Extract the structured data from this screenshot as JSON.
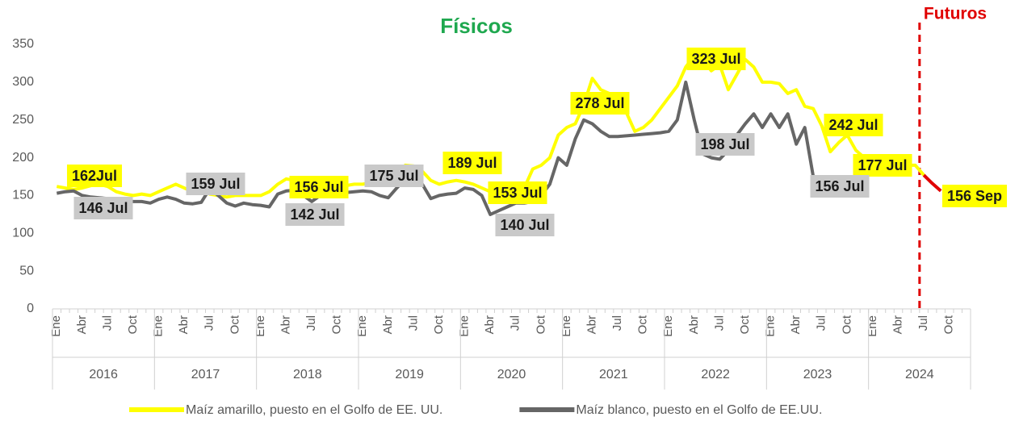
{
  "chart_data": {
    "type": "line",
    "title": "Físicos",
    "futures_label": "Futuros",
    "futures_color": "#e00000",
    "categories": [
      "Ene",
      null,
      null,
      "Abr",
      null,
      null,
      "Jul",
      null,
      null,
      "Oct",
      null,
      null,
      "Ene",
      null,
      null,
      "Abr",
      null,
      null,
      "Jul",
      null,
      null,
      "Oct",
      null,
      null,
      "Ene",
      null,
      null,
      "Abr",
      null,
      null,
      "Jul",
      null,
      null,
      "Oct",
      null,
      null,
      "Ene",
      null,
      null,
      "Abr",
      null,
      null,
      "Jul",
      null,
      null,
      "Oct",
      null,
      null,
      "Ene",
      null,
      null,
      "Abr",
      null,
      null,
      "Jul",
      null,
      null,
      "Oct",
      null,
      null,
      "Ene",
      null,
      null,
      "Abr",
      null,
      null,
      "Jul",
      null,
      null,
      "Oct",
      null,
      null,
      "Ene",
      null,
      null,
      "Abr",
      null,
      null,
      "Jul",
      null,
      null,
      "Oct",
      null,
      null,
      "Ene",
      null,
      null,
      "Abr",
      null,
      null,
      "Jul",
      null,
      null,
      "Oct",
      null,
      null,
      "Ene",
      null,
      null,
      "Abr",
      null,
      null,
      "Jul",
      null,
      null,
      "Oct",
      null,
      null
    ],
    "year_groups": [
      "2016",
      "2017",
      "2018",
      "2019",
      "2020",
      "2021",
      "2022",
      "2023",
      "2024"
    ],
    "ylim": [
      0,
      350
    ],
    "yticks": [
      0,
      50,
      100,
      150,
      200,
      250,
      300,
      350
    ],
    "series": [
      {
        "name": "Maíz amarillo, puesto en el Golfo de EE. UU.",
        "color": "#ffff00",
        "label_bg": "#ffff00",
        "values": [
          162,
          160,
          158,
          160,
          163,
          165,
          162,
          155,
          152,
          150,
          152,
          150,
          155,
          160,
          165,
          160,
          155,
          156,
          152,
          150,
          148,
          150,
          150,
          150,
          150,
          155,
          165,
          172,
          170,
          160,
          156,
          158,
          160,
          162,
          163,
          165,
          165,
          167,
          168,
          170,
          175,
          190,
          189,
          182,
          170,
          165,
          168,
          170,
          168,
          165,
          160,
          155,
          150,
          150,
          153,
          160,
          185,
          190,
          200,
          230,
          240,
          245,
          270,
          305,
          290,
          285,
          278,
          260,
          235,
          240,
          250,
          265,
          280,
          295,
          320,
          335,
          330,
          315,
          323,
          290,
          310,
          330,
          320,
          300,
          300,
          298,
          285,
          290,
          268,
          265,
          242,
          208,
          220,
          230,
          210,
          200,
          195,
          197,
          195,
          193,
          190,
          190,
          177,
          null,
          null,
          null,
          null,
          null
        ],
        "value_labels": [
          null,
          null,
          null,
          null,
          null,
          null,
          "162Jul",
          null,
          null,
          null,
          null,
          null,
          null,
          null,
          null,
          null,
          null,
          null,
          null,
          null,
          null,
          null,
          null,
          null,
          null,
          null,
          null,
          null,
          null,
          null,
          "156 Jul",
          null,
          null,
          null,
          null,
          null,
          null,
          null,
          null,
          null,
          null,
          null,
          "189 Jul",
          null,
          null,
          null,
          null,
          null,
          null,
          null,
          null,
          null,
          null,
          null,
          "153 Jul",
          null,
          null,
          null,
          null,
          null,
          null,
          null,
          null,
          null,
          null,
          null,
          "278 Jul",
          null,
          null,
          null,
          null,
          null,
          null,
          null,
          null,
          null,
          null,
          null,
          "323 Jul",
          null,
          null,
          null,
          null,
          null,
          null,
          null,
          null,
          null,
          null,
          null,
          "242 Jul",
          null,
          null,
          null,
          null,
          null,
          null,
          null,
          null,
          null,
          null,
          null,
          "177 Jul",
          null,
          null,
          null,
          null,
          null
        ]
      },
      {
        "name": "Maíz blanco, puesto en el Golfo de EE.UU.",
        "color": "#666666",
        "label_bg": "#c9c9c9",
        "values": [
          153,
          155,
          156,
          150,
          148,
          147,
          146,
          145,
          143,
          142,
          142,
          140,
          145,
          148,
          145,
          140,
          139,
          141,
          159,
          150,
          140,
          136,
          140,
          138,
          137,
          135,
          152,
          156,
          157,
          150,
          142,
          150,
          152,
          155,
          154,
          155,
          156,
          155,
          150,
          147,
          160,
          172,
          175,
          165,
          146,
          150,
          152,
          153,
          160,
          158,
          150,
          125,
          130,
          135,
          140,
          140,
          142,
          150,
          165,
          200,
          190,
          225,
          250,
          245,
          235,
          228,
          228,
          229,
          230,
          231,
          232,
          233,
          235,
          250,
          300,
          250,
          205,
          200,
          198,
          210,
          230,
          245,
          258,
          240,
          258,
          240,
          258,
          218,
          240,
          175,
          156,
          null,
          null,
          null,
          null,
          null,
          null,
          null,
          null,
          null,
          null,
          null,
          null,
          null,
          null,
          null,
          null,
          null
        ],
        "value_labels": [
          null,
          null,
          null,
          null,
          null,
          null,
          "146 Jul",
          null,
          null,
          null,
          null,
          null,
          null,
          null,
          null,
          null,
          null,
          null,
          "159 Jul",
          null,
          null,
          null,
          null,
          null,
          null,
          null,
          null,
          null,
          null,
          null,
          "142 Jul",
          null,
          null,
          null,
          null,
          null,
          null,
          null,
          null,
          null,
          null,
          null,
          "175 Jul",
          null,
          null,
          null,
          null,
          null,
          null,
          null,
          null,
          null,
          null,
          null,
          "140 Jul",
          null,
          null,
          null,
          null,
          null,
          null,
          null,
          null,
          null,
          null,
          null,
          null,
          null,
          null,
          null,
          null,
          null,
          null,
          null,
          null,
          null,
          null,
          null,
          "198 Jul",
          null,
          null,
          null,
          null,
          null,
          null,
          null,
          null,
          null,
          null,
          null,
          "156 Jul",
          null,
          null,
          null,
          null,
          null,
          null,
          null,
          null,
          null,
          null,
          null,
          null,
          null,
          null,
          null,
          null,
          null
        ]
      },
      {
        "color": "#e00000",
        "label_bg": "#ffff00",
        "values": [
          null,
          null,
          null,
          null,
          null,
          null,
          null,
          null,
          null,
          null,
          null,
          null,
          null,
          null,
          null,
          null,
          null,
          null,
          null,
          null,
          null,
          null,
          null,
          null,
          null,
          null,
          null,
          null,
          null,
          null,
          null,
          null,
          null,
          null,
          null,
          null,
          null,
          null,
          null,
          null,
          null,
          null,
          null,
          null,
          null,
          null,
          null,
          null,
          null,
          null,
          null,
          null,
          null,
          null,
          null,
          null,
          null,
          null,
          null,
          null,
          null,
          null,
          null,
          null,
          null,
          null,
          null,
          null,
          null,
          null,
          null,
          null,
          null,
          null,
          null,
          null,
          null,
          null,
          null,
          null,
          null,
          null,
          null,
          null,
          null,
          null,
          null,
          null,
          null,
          null,
          null,
          null,
          null,
          null,
          null,
          null,
          null,
          null,
          null,
          null,
          null,
          null,
          177,
          166,
          156,
          null,
          null,
          null
        ],
        "value_labels": [
          null,
          null,
          null,
          null,
          null,
          null,
          null,
          null,
          null,
          null,
          null,
          null,
          null,
          null,
          null,
          null,
          null,
          null,
          null,
          null,
          null,
          null,
          null,
          null,
          null,
          null,
          null,
          null,
          null,
          null,
          null,
          null,
          null,
          null,
          null,
          null,
          null,
          null,
          null,
          null,
          null,
          null,
          null,
          null,
          null,
          null,
          null,
          null,
          null,
          null,
          null,
          null,
          null,
          null,
          null,
          null,
          null,
          null,
          null,
          null,
          null,
          null,
          null,
          null,
          null,
          null,
          null,
          null,
          null,
          null,
          null,
          null,
          null,
          null,
          null,
          null,
          null,
          null,
          null,
          null,
          null,
          null,
          null,
          null,
          null,
          null,
          null,
          null,
          null,
          null,
          null,
          null,
          null,
          null,
          null,
          null,
          null,
          null,
          null,
          null,
          null,
          null,
          null,
          null,
          "156 Sep",
          null,
          null,
          null
        ]
      }
    ]
  }
}
